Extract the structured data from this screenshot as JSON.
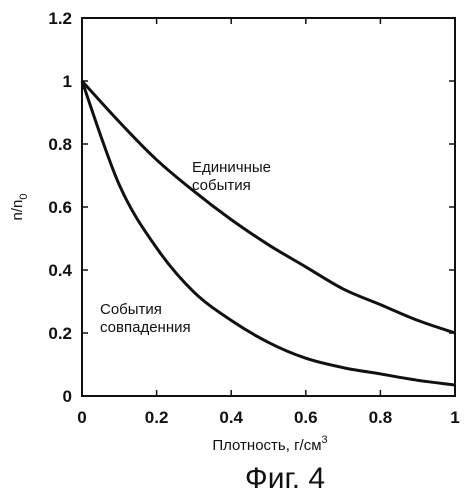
{
  "chart_data": {
    "type": "line",
    "title": "",
    "xlabel": "Плотность, г/см",
    "xlabel_sup": "3",
    "ylabel": "n/n",
    "ylabel_sub": "0",
    "xlim": [
      0,
      1
    ],
    "ylim": [
      0,
      1.2
    ],
    "xticks": [
      "0",
      "0.2",
      "0.4",
      "0.6",
      "0.8",
      "1"
    ],
    "yticks": [
      "0",
      "0.2",
      "0.4",
      "0.6",
      "0.8",
      "1",
      "1.2"
    ],
    "grid": false,
    "series": [
      {
        "name": "Единичные события",
        "label_lines": [
          "Единичные",
          "события"
        ],
        "x": [
          0,
          0.1,
          0.2,
          0.3,
          0.4,
          0.5,
          0.6,
          0.7,
          0.8,
          0.9,
          1.0
        ],
        "y": [
          1.0,
          0.87,
          0.75,
          0.65,
          0.56,
          0.48,
          0.41,
          0.34,
          0.29,
          0.24,
          0.2
        ]
      },
      {
        "name": "События совпадения",
        "label_lines": [
          "События",
          "совпаденния"
        ],
        "x": [
          0,
          0.1,
          0.2,
          0.3,
          0.4,
          0.5,
          0.6,
          0.7,
          0.8,
          0.9,
          1.0
        ],
        "y": [
          1.0,
          0.67,
          0.47,
          0.33,
          0.24,
          0.17,
          0.12,
          0.09,
          0.07,
          0.05,
          0.035
        ]
      }
    ]
  },
  "caption": "Фиг. 4"
}
